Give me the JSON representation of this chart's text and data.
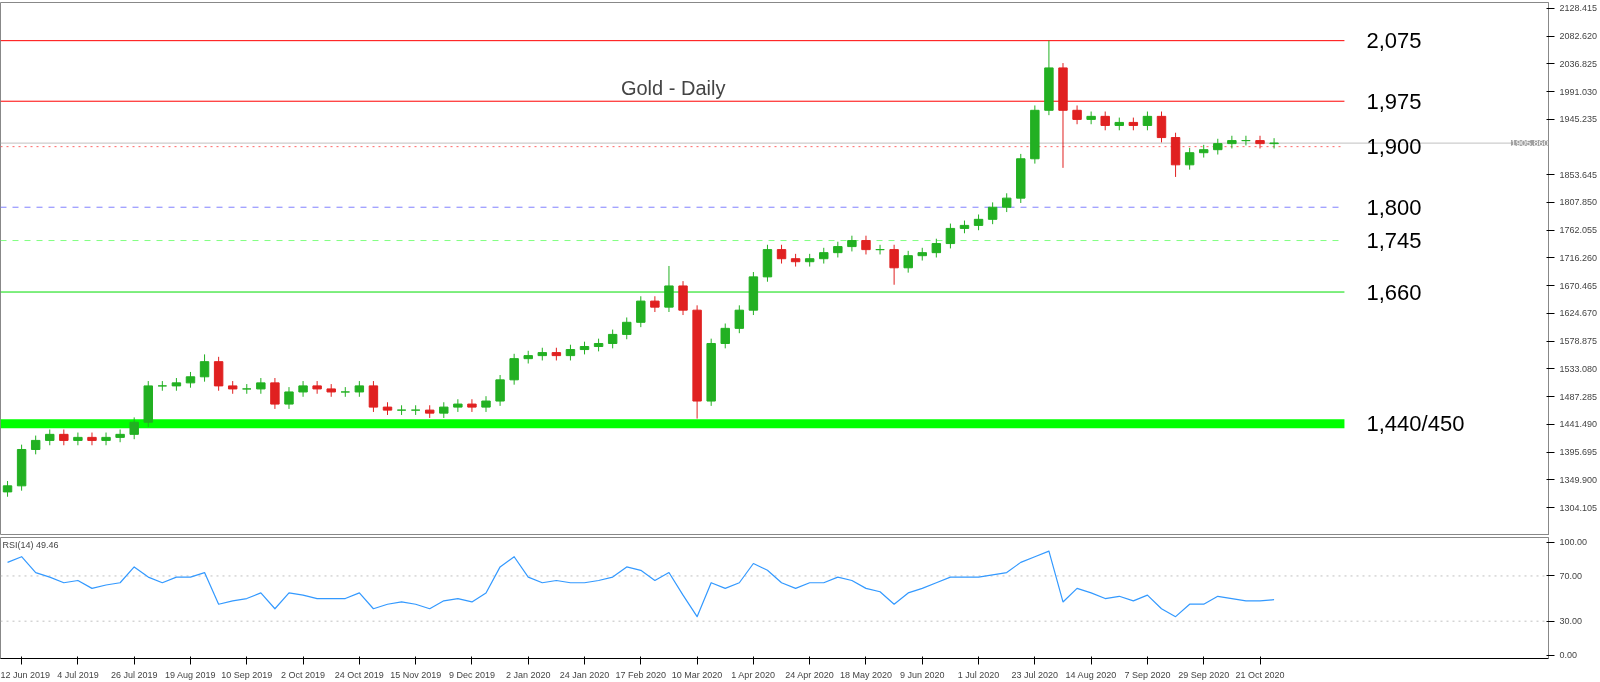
{
  "chart_data": [
    {
      "type": "candlestick",
      "title": "Gold - Daily",
      "categories": [
        null,
        null,
        null,
        null,
        null,
        null,
        null,
        null,
        null,
        null,
        null,
        null,
        null,
        null,
        null,
        null,
        null,
        null,
        null,
        null,
        null,
        null,
        null,
        null,
        null,
        null,
        null,
        null,
        null,
        null,
        null,
        null,
        null,
        null,
        null,
        null,
        null,
        null,
        null,
        null,
        null,
        null,
        null,
        null,
        null,
        null,
        null,
        null,
        null,
        null,
        null,
        null,
        null,
        null,
        null,
        null,
        null,
        null,
        null,
        null,
        null,
        null,
        null,
        null,
        null,
        null,
        null,
        null,
        null,
        null,
        null,
        null,
        null,
        null,
        null,
        null,
        null,
        null,
        null,
        null,
        null,
        null,
        null,
        null,
        null,
        null,
        null,
        null,
        null,
        null,
        null,
        null,
        null,
        null,
        null,
        null,
        null,
        null,
        null,
        null,
        null,
        null,
        null,
        null,
        null,
        null,
        null,
        null,
        null,
        null
      ],
      "ohlc": [
        [
          1330,
          1348,
          1322,
          1340
        ],
        [
          1340,
          1408,
          1332,
          1400
        ],
        [
          1400,
          1423,
          1392,
          1415
        ],
        [
          1415,
          1433,
          1407,
          1425
        ],
        [
          1425,
          1433,
          1407,
          1415
        ],
        [
          1415,
          1428,
          1407,
          1420
        ],
        [
          1420,
          1428,
          1407,
          1415
        ],
        [
          1415,
          1428,
          1407,
          1420
        ],
        [
          1420,
          1433,
          1412,
          1425
        ],
        [
          1425,
          1453,
          1417,
          1445
        ],
        [
          1445,
          1513,
          1437,
          1505
        ],
        [
          1505,
          1513,
          1497,
          1505
        ],
        [
          1505,
          1518,
          1497,
          1510
        ],
        [
          1510,
          1528,
          1502,
          1520
        ],
        [
          1520,
          1557,
          1512,
          1545
        ],
        [
          1545,
          1553,
          1497,
          1505
        ],
        [
          1505,
          1513,
          1492,
          1500
        ],
        [
          1500,
          1508,
          1492,
          1500
        ],
        [
          1500,
          1518,
          1492,
          1510
        ],
        [
          1510,
          1518,
          1467,
          1475
        ],
        [
          1475,
          1503,
          1467,
          1495
        ],
        [
          1495,
          1513,
          1487,
          1505
        ],
        [
          1505,
          1513,
          1492,
          1500
        ],
        [
          1500,
          1508,
          1487,
          1495
        ],
        [
          1495,
          1503,
          1487,
          1495
        ],
        [
          1495,
          1513,
          1487,
          1505
        ],
        [
          1505,
          1513,
          1462,
          1470
        ],
        [
          1470,
          1478,
          1457,
          1465
        ],
        [
          1465,
          1473,
          1457,
          1465
        ],
        [
          1465,
          1473,
          1457,
          1465
        ],
        [
          1465,
          1473,
          1452,
          1460
        ],
        [
          1460,
          1478,
          1452,
          1470
        ],
        [
          1470,
          1483,
          1462,
          1475
        ],
        [
          1475,
          1483,
          1462,
          1470
        ],
        [
          1470,
          1488,
          1462,
          1480
        ],
        [
          1480,
          1523,
          1472,
          1515
        ],
        [
          1515,
          1558,
          1507,
          1550
        ],
        [
          1550,
          1563,
          1542,
          1555
        ],
        [
          1555,
          1568,
          1547,
          1560
        ],
        [
          1560,
          1568,
          1547,
          1555
        ],
        [
          1555,
          1573,
          1547,
          1565
        ],
        [
          1565,
          1578,
          1557,
          1570
        ],
        [
          1570,
          1583,
          1562,
          1575
        ],
        [
          1575,
          1598,
          1567,
          1590
        ],
        [
          1590,
          1618,
          1582,
          1610
        ],
        [
          1610,
          1653,
          1602,
          1645
        ],
        [
          1645,
          1653,
          1627,
          1635
        ],
        [
          1635,
          1703,
          1627,
          1670
        ],
        [
          1670,
          1678,
          1622,
          1630
        ],
        [
          1630,
          1638,
          1451,
          1480
        ],
        [
          1480,
          1583,
          1472,
          1575
        ],
        [
          1575,
          1608,
          1567,
          1600
        ],
        [
          1600,
          1638,
          1592,
          1630
        ],
        [
          1630,
          1693,
          1622,
          1685
        ],
        [
          1685,
          1738,
          1677,
          1730
        ],
        [
          1730,
          1738,
          1707,
          1715
        ],
        [
          1715,
          1723,
          1702,
          1710
        ],
        [
          1710,
          1723,
          1702,
          1715
        ],
        [
          1715,
          1733,
          1707,
          1725
        ],
        [
          1725,
          1743,
          1717,
          1735
        ],
        [
          1735,
          1753,
          1727,
          1745
        ],
        [
          1745,
          1753,
          1722,
          1730
        ],
        [
          1730,
          1738,
          1722,
          1730
        ],
        [
          1730,
          1738,
          1672,
          1700
        ],
        [
          1700,
          1728,
          1692,
          1720
        ],
        [
          1720,
          1733,
          1712,
          1725
        ],
        [
          1725,
          1748,
          1717,
          1740
        ],
        [
          1740,
          1773,
          1732,
          1765
        ],
        [
          1765,
          1778,
          1757,
          1770
        ],
        [
          1770,
          1788,
          1762,
          1780
        ],
        [
          1780,
          1808,
          1772,
          1800
        ],
        [
          1800,
          1823,
          1792,
          1815
        ],
        [
          1815,
          1888,
          1807,
          1880
        ],
        [
          1880,
          1968,
          1872,
          1960
        ],
        [
          1960,
          2075,
          1952,
          2030
        ],
        [
          2030,
          2038,
          1865,
          1960
        ],
        [
          1960,
          1968,
          1937,
          1945
        ],
        [
          1945,
          1958,
          1937,
          1950
        ],
        [
          1950,
          1958,
          1927,
          1935
        ],
        [
          1935,
          1948,
          1927,
          1940
        ],
        [
          1940,
          1948,
          1927,
          1935
        ],
        [
          1935,
          1958,
          1927,
          1950
        ],
        [
          1950,
          1958,
          1907,
          1915
        ],
        [
          1915,
          1923,
          1850,
          1870
        ],
        [
          1870,
          1898,
          1862,
          1890
        ],
        [
          1890,
          1903,
          1882,
          1895
        ],
        [
          1895,
          1913,
          1887,
          1905
        ],
        [
          1905,
          1918,
          1897,
          1910
        ],
        [
          1910,
          1918,
          1902,
          1910
        ],
        [
          1910,
          1918,
          1897,
          1905
        ],
        [
          1905,
          1914,
          1897,
          1906
        ],
        null,
        null,
        null,
        null,
        null,
        null,
        null,
        null,
        null,
        null,
        null,
        null,
        null,
        null,
        null,
        null,
        null,
        null,
        null
      ],
      "ylim": [
        1258,
        2138
      ],
      "yticks": [
        {
          "value": 2128.415,
          "label": "2128.415"
        },
        {
          "value": 2082.62,
          "label": "2082.620"
        },
        {
          "value": 2036.825,
          "label": "2036.825"
        },
        {
          "value": 1991.03,
          "label": "1991.030"
        },
        {
          "value": 1945.235,
          "label": "1945.235"
        },
        {
          "value": 1853.645,
          "label": "1853.645"
        },
        {
          "value": 1807.85,
          "label": "1807.850"
        },
        {
          "value": 1762.055,
          "label": "1762.055"
        },
        {
          "value": 1716.26,
          "label": "1716.260"
        },
        {
          "value": 1670.465,
          "label": "1670.465"
        },
        {
          "value": 1624.67,
          "label": "1624.670"
        },
        {
          "value": 1578.875,
          "label": "1578.875"
        },
        {
          "value": 1533.08,
          "label": "1533.080"
        },
        {
          "value": 1487.285,
          "label": "1487.285"
        },
        {
          "value": 1441.49,
          "label": "1441.490"
        },
        {
          "value": 1395.695,
          "label": "1395.695"
        },
        {
          "value": 1349.9,
          "label": "1349.900"
        },
        {
          "value": 1304.105,
          "label": "1304.105"
        }
      ],
      "tick_labels": "y",
      "ref_lines": [
        {
          "axis": "y",
          "value": 2075,
          "label": "2,075",
          "color": "#ff0000",
          "line_style": "solid"
        },
        {
          "axis": "y",
          "value": 1975,
          "label": "1,975",
          "color": "#ff0000",
          "line_style": "solid"
        },
        {
          "axis": "y",
          "value": 1900,
          "label": "1,900",
          "color": "#ff6666",
          "line_style": "dotted"
        },
        {
          "axis": "y",
          "value": 1905.86,
          "label": "1905.860",
          "color": "#c0c0c0",
          "line_style": "solid"
        },
        {
          "axis": "y",
          "value": 1800,
          "label": "1,800",
          "color": "#8080ff",
          "line_style": "dashed"
        },
        {
          "axis": "y",
          "value": 1745,
          "label": "1,745",
          "color": "#80ff80",
          "line_style": "dashed"
        },
        {
          "axis": "y",
          "value": 1660,
          "label": "1,660",
          "color": "#00dd00",
          "line_style": "solid"
        }
      ],
      "bands": [
        {
          "axis": "y",
          "from": 1435,
          "to": 1450,
          "label": "1,440/450",
          "color": "#00ff00"
        }
      ]
    },
    {
      "type": "line",
      "title": "RSI(14) 49.46",
      "categories": [
        null,
        "12 Jun 2019",
        null,
        null,
        null,
        "4 Jul 2019",
        null,
        null,
        null,
        "26 Jul 2019",
        null,
        null,
        null,
        "19 Aug 2019",
        null,
        null,
        null,
        "10 Sep 2019",
        null,
        null,
        null,
        "2 Oct 2019",
        null,
        null,
        null,
        "24 Oct 2019",
        null,
        null,
        null,
        "15 Nov 2019",
        null,
        null,
        null,
        "9 Dec 2019",
        null,
        null,
        null,
        "2 Jan 2020",
        null,
        null,
        null,
        "24 Jan 2020",
        null,
        null,
        null,
        "17 Feb 2020",
        null,
        null,
        null,
        "10 Mar 2020",
        null,
        null,
        null,
        "1 Apr 2020",
        null,
        null,
        null,
        "24 Apr 2020",
        null,
        null,
        null,
        "18 May 2020",
        null,
        null,
        null,
        "9 Jun 2020",
        null,
        null,
        null,
        "1 Jul 2020",
        null,
        null,
        null,
        "23 Jul 2020",
        null,
        null,
        null,
        "14 Aug 2020",
        null,
        null,
        null,
        "7 Sep 2020",
        null,
        null,
        null,
        "29 Sep 2020",
        null,
        null,
        null,
        "21 Oct 2020",
        null,
        null,
        null,
        null,
        null,
        null,
        null,
        null,
        null,
        null,
        null,
        null,
        null,
        null,
        null,
        null,
        null,
        null,
        null,
        null
      ],
      "series": [
        {
          "color": "#3399ff",
          "values": [
            82,
            87,
            73,
            69,
            64,
            66,
            59,
            62,
            64,
            78,
            69,
            64,
            69,
            69,
            73,
            45,
            48,
            50,
            55,
            41,
            55,
            53,
            50,
            50,
            50,
            55,
            41,
            45,
            47,
            45,
            41,
            48,
            50,
            47,
            55,
            78,
            87,
            69,
            64,
            66,
            64,
            64,
            66,
            69,
            78,
            75,
            66,
            73,
            53,
            34,
            64,
            59,
            64,
            81,
            75,
            64,
            59,
            64,
            64,
            69,
            66,
            59,
            56,
            45,
            55,
            59,
            64,
            69,
            69,
            69,
            71,
            73,
            82,
            87,
            92,
            47,
            59,
            55,
            50,
            52,
            48,
            53,
            41,
            34,
            45,
            45,
            52,
            50,
            48,
            48,
            49,
            null,
            null,
            null,
            null,
            null,
            null,
            null,
            null,
            null,
            null,
            null,
            null,
            null,
            null,
            null,
            null,
            null,
            null,
            null
          ]
        }
      ],
      "ylim": [
        -3,
        104
      ],
      "yticks": [
        {
          "value": 100,
          "label": "100.00"
        },
        {
          "value": 70,
          "label": "70.00"
        },
        {
          "value": 30,
          "label": "30.00"
        },
        {
          "value": 0,
          "label": "0.00"
        }
      ],
      "ref_lines": [
        {
          "axis": "y",
          "value": 70,
          "color": "#c0c0c0",
          "line_style": "dotted"
        },
        {
          "axis": "y",
          "value": 30,
          "color": "#c0c0c0",
          "line_style": "dotted"
        }
      ]
    }
  ]
}
